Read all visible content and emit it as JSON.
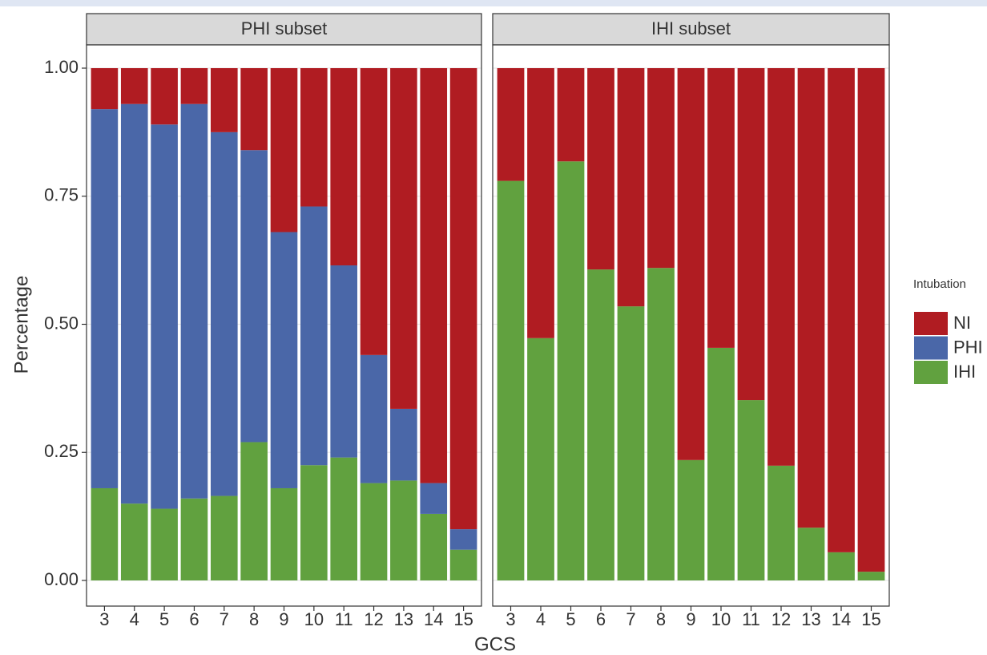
{
  "chart_data": [
    {
      "type": "bar",
      "stacked": true,
      "title": "PHI subset",
      "ylabel": "Percentage",
      "xlabel": "GCS",
      "legend_title": "Intubation",
      "ylim": [
        0,
        1
      ],
      "yticks": [
        {
          "value": 0,
          "label": "0.00"
        },
        {
          "value": 0.25,
          "label": "0.25"
        },
        {
          "value": 0.5,
          "label": "0.50"
        },
        {
          "value": 0.75,
          "label": "0.75"
        },
        {
          "value": 1,
          "label": "1.00"
        }
      ],
      "grid": true,
      "categories": [
        "3",
        "4",
        "5",
        "6",
        "7",
        "8",
        "9",
        "10",
        "11",
        "12",
        "13",
        "14",
        "15"
      ],
      "series": [
        {
          "name": "NI",
          "color": "#b01c22",
          "values": [
            0.08,
            0.07,
            0.11,
            0.07,
            0.125,
            0.16,
            0.32,
            0.27,
            0.385,
            0.56,
            0.665,
            0.81,
            0.9
          ]
        },
        {
          "name": "PHI",
          "color": "#4a67a8",
          "values": [
            0.74,
            0.78,
            0.75,
            0.77,
            0.71,
            0.57,
            0.5,
            0.505,
            0.375,
            0.25,
            0.14,
            0.06,
            0.04
          ]
        },
        {
          "name": "IHI",
          "color": "#61a13f",
          "values": [
            0.18,
            0.15,
            0.14,
            0.16,
            0.165,
            0.27,
            0.18,
            0.225,
            0.24,
            0.19,
            0.195,
            0.13,
            0.06
          ]
        }
      ]
    },
    {
      "type": "bar",
      "stacked": true,
      "title": "IHI subset",
      "categories": [
        "3",
        "4",
        "5",
        "6",
        "7",
        "8",
        "9",
        "10",
        "11",
        "12",
        "13",
        "14",
        "15"
      ],
      "series": [
        {
          "name": "NI",
          "color": "#b01c22",
          "values": [
            0.22,
            0.527,
            0.182,
            0.393,
            0.465,
            0.39,
            0.765,
            0.546,
            0.648,
            0.776,
            0.897,
            0.945,
            0.983
          ]
        },
        {
          "name": "IHI",
          "color": "#61a13f",
          "values": [
            0.78,
            0.473,
            0.818,
            0.607,
            0.535,
            0.61,
            0.235,
            0.454,
            0.352,
            0.224,
            0.103,
            0.055,
            0.017
          ]
        }
      ]
    }
  ]
}
